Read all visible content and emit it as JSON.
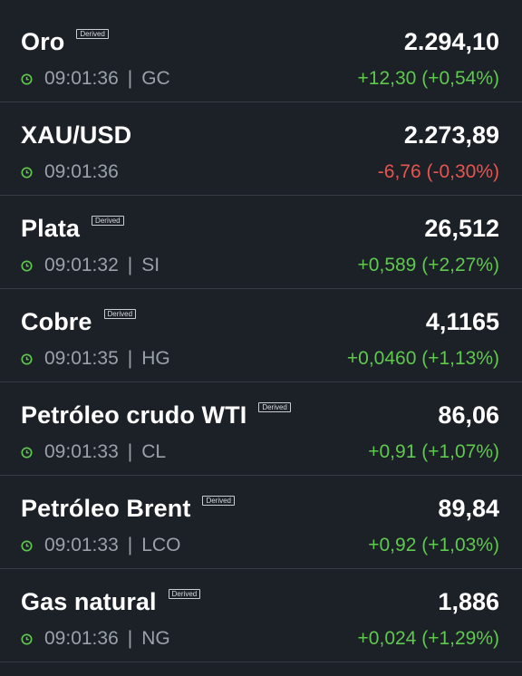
{
  "colors": {
    "background": "#1c2127",
    "divider": "#343b44",
    "positive": "#5ec94d",
    "negative": "#e8544f",
    "muted_text": "#9aa1a9",
    "clock_icon": "#5ec94d"
  },
  "quotes": [
    {
      "name": "Oro",
      "derived": "Derived",
      "price": "2.294,10",
      "time": "09:01:36",
      "sep": "|",
      "symbol": "GC",
      "change": "+12,30 (+0,54%)",
      "direction": "up"
    },
    {
      "name": "XAU/USD",
      "derived": "",
      "price": "2.273,89",
      "time": "09:01:36",
      "sep": "",
      "symbol": "",
      "change": "-6,76 (-0,30%)",
      "direction": "down"
    },
    {
      "name": "Plata",
      "derived": "Derived",
      "price": "26,512",
      "time": "09:01:32",
      "sep": "|",
      "symbol": "SI",
      "change": "+0,589 (+2,27%)",
      "direction": "up"
    },
    {
      "name": "Cobre",
      "derived": "Derived",
      "price": "4,1165",
      "time": "09:01:35",
      "sep": "|",
      "symbol": "HG",
      "change": "+0,0460 (+1,13%)",
      "direction": "up"
    },
    {
      "name": "Petróleo crudo WTI",
      "derived": "Derived",
      "price": "86,06",
      "time": "09:01:33",
      "sep": "|",
      "symbol": "CL",
      "change": "+0,91 (+1,07%)",
      "direction": "up"
    },
    {
      "name": "Petróleo Brent",
      "derived": "Derived",
      "price": "89,84",
      "time": "09:01:33",
      "sep": "|",
      "symbol": "LCO",
      "change": "+0,92 (+1,03%)",
      "direction": "up"
    },
    {
      "name": "Gas natural",
      "derived": "Derived",
      "price": "1,886",
      "time": "09:01:36",
      "sep": "|",
      "symbol": "NG",
      "change": "+0,024 (+1,29%)",
      "direction": "up"
    }
  ]
}
